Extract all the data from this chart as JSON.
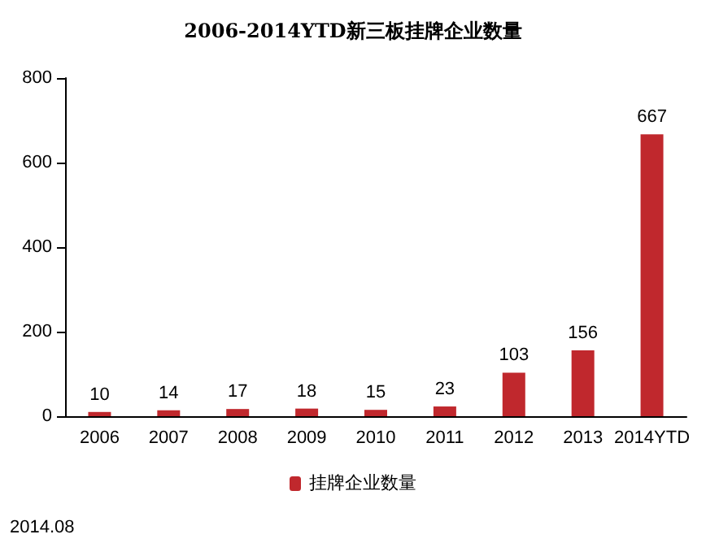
{
  "chart_data": {
    "type": "bar",
    "title": "2006-2014YTD新三板挂牌企业数量",
    "categories": [
      "2006",
      "2007",
      "2008",
      "2009",
      "2010",
      "2011",
      "2012",
      "2013",
      "2014YTD"
    ],
    "series": [
      {
        "name": "挂牌企业数量",
        "color": "#c0282d",
        "values": [
          10,
          14,
          17,
          18,
          15,
          23,
          103,
          156,
          667
        ]
      }
    ],
    "ylim": [
      0,
      800
    ],
    "yticks": [
      0,
      200,
      400,
      600,
      800
    ],
    "grid": false,
    "legend": "bottom",
    "data_labels": true,
    "annotations": [
      "2014.08"
    ]
  }
}
